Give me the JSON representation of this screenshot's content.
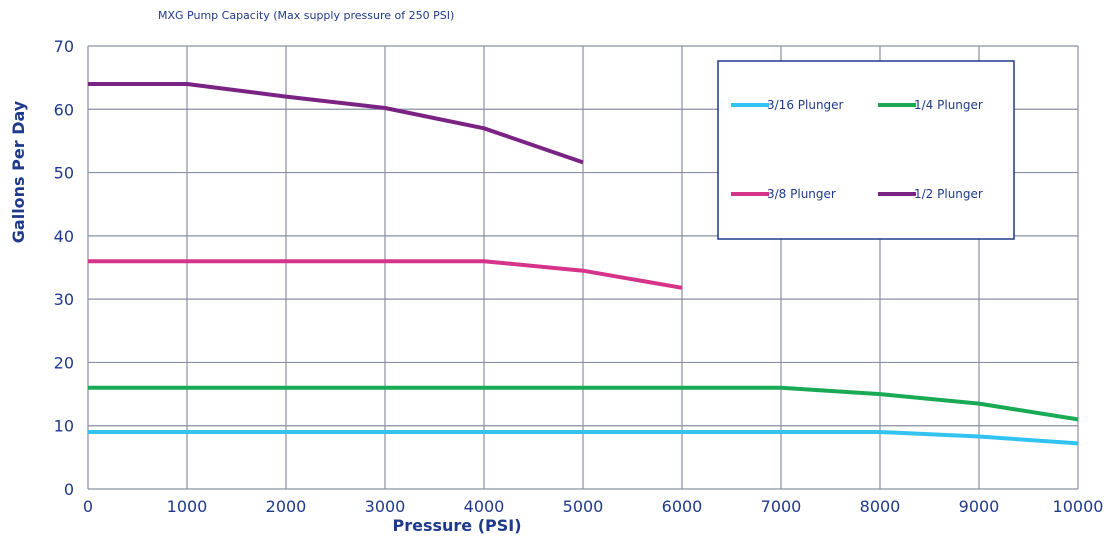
{
  "chart_data": {
    "type": "line",
    "title": "MXG Pump Capacity (Max supply pressure of 250 PSI)",
    "xlabel": "Pressure (PSI)",
    "ylabel": "Gallons Per Day",
    "xlim": [
      0,
      10000
    ],
    "ylim": [
      0,
      70
    ],
    "x_ticks": [
      "0",
      "1000",
      "2000",
      "3000",
      "4000",
      "5000",
      "6000",
      "7000",
      "8000",
      "9000",
      "10000"
    ],
    "y_ticks": [
      "0",
      "10",
      "20",
      "30",
      "40",
      "50",
      "60",
      "70"
    ],
    "grid": true,
    "legend_position": "top-right",
    "series": [
      {
        "name": "3/16 Plunger",
        "color": "#33c3f0",
        "points": [
          [
            0,
            9
          ],
          [
            1000,
            9
          ],
          [
            2000,
            9
          ],
          [
            3000,
            9
          ],
          [
            4000,
            9
          ],
          [
            5000,
            9
          ],
          [
            6000,
            9
          ],
          [
            7000,
            9
          ],
          [
            8000,
            9
          ],
          [
            9000,
            8.3
          ],
          [
            10000,
            7.2
          ]
        ]
      },
      {
        "name": "1/4 Plunger",
        "color": "#1aaa55",
        "points": [
          [
            0,
            16
          ],
          [
            1000,
            16
          ],
          [
            2000,
            16
          ],
          [
            3000,
            16
          ],
          [
            4000,
            16
          ],
          [
            5000,
            16
          ],
          [
            6000,
            16
          ],
          [
            7000,
            16
          ],
          [
            8000,
            15
          ],
          [
            9000,
            13.5
          ],
          [
            10000,
            11
          ]
        ]
      },
      {
        "name": "3/8 Plunger",
        "color": "#d6338a",
        "points": [
          [
            0,
            36
          ],
          [
            1000,
            36
          ],
          [
            2000,
            36
          ],
          [
            3000,
            36
          ],
          [
            4000,
            36
          ],
          [
            5000,
            34.5
          ],
          [
            6000,
            31.8
          ]
        ]
      },
      {
        "name": "1/2 Plunger",
        "color": "#7b2384",
        "points": [
          [
            0,
            64
          ],
          [
            1000,
            64
          ],
          [
            2000,
            62
          ],
          [
            3000,
            60.2
          ],
          [
            4000,
            57
          ],
          [
            5000,
            51.6
          ]
        ]
      }
    ]
  }
}
